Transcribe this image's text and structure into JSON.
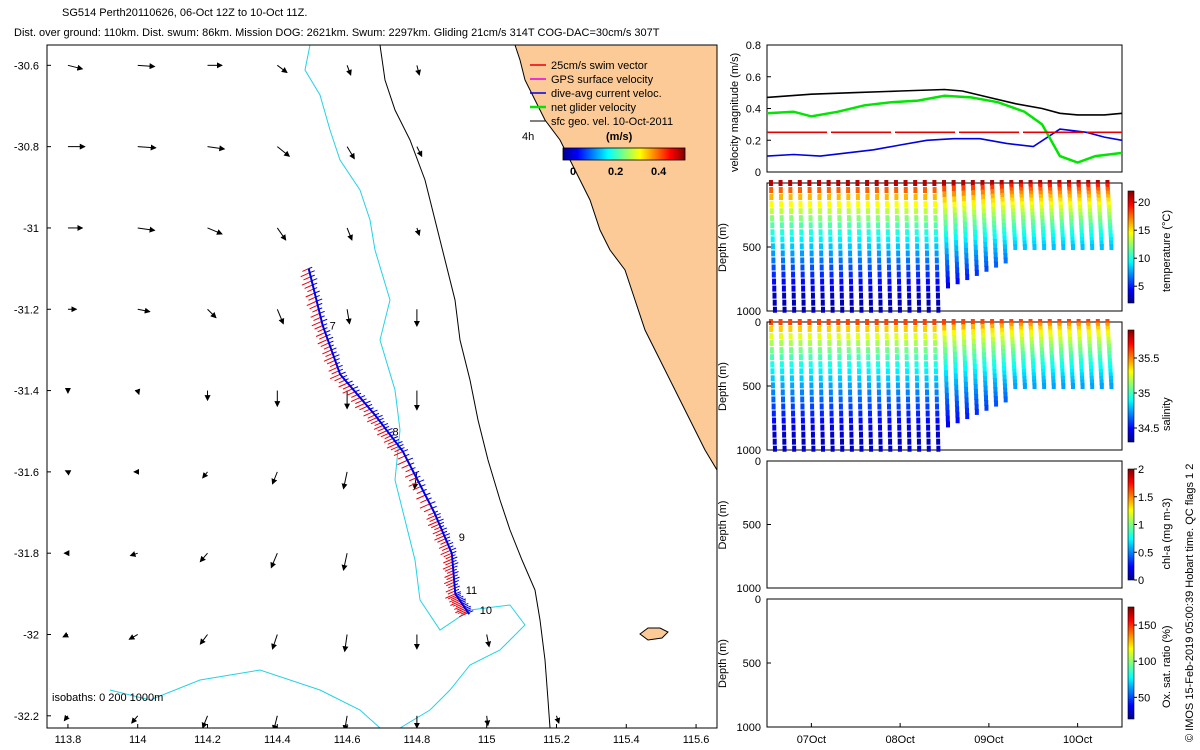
{
  "header": {
    "title_line": "SG514 Perth20110626, 06-Oct 12Z to 10-Oct 11Z.",
    "stats_line": "Dist. over ground: 110km. Dist. swum: 86km. Mission DOG: 2621km. Swum: 2297km. Gliding 21cm/s 314T COG-DAC=30cm/s 307T"
  },
  "side_note": "© IMOS 15-Feb-2019 05:00:39 Hobart time. QC flags 1 2",
  "colors": {
    "land": "#fcca96",
    "coast": "#000000",
    "isobath200": "#22d3e6",
    "swim": "#e8000b",
    "gps": "#e600e6",
    "dac": "#0000e6",
    "net": "#00e600",
    "geo": "#000000",
    "ref_line": "#e60000"
  },
  "chart_data": [
    {
      "type": "scatter",
      "panel": "map",
      "title": "",
      "xlabel": "",
      "ylabel": "",
      "xlim": [
        113.74,
        115.66
      ],
      "ylim": [
        -32.23,
        -30.55
      ],
      "x_ticks": [
        "113.8",
        "114",
        "114.2",
        "114.4",
        "114.6",
        "114.8",
        "115",
        "115.2",
        "115.4",
        "115.6"
      ],
      "y_ticks": [
        "-30.6",
        "-30.8",
        "-31",
        "-31.2",
        "-31.4",
        "-31.6",
        "-31.8",
        "-32",
        "-32.2"
      ],
      "legend": {
        "items": [
          "25cm/s swim vector",
          "GPS surface velocity",
          "dive-avg current veloc.",
          "net glider velocity",
          "sfc geo. vel. 10-Oct-2011"
        ],
        "position": "top-right",
        "time_label": "4h"
      },
      "colorbar": {
        "label": "(m/s)",
        "ticks": [
          "0",
          "0.2",
          "0.4"
        ],
        "range": [
          0,
          0.5
        ]
      },
      "isobath_label": "isobaths: 0   200  1000m",
      "track": [
        {
          "lon": 114.49,
          "lat": -31.1
        },
        {
          "lon": 114.53,
          "lat": -31.24
        },
        {
          "lon": 114.58,
          "lat": -31.36
        },
        {
          "lon": 114.68,
          "lat": -31.46
        },
        {
          "lon": 114.76,
          "lat": -31.55
        },
        {
          "lon": 114.85,
          "lat": -31.7
        },
        {
          "lon": 114.9,
          "lat": -31.8
        },
        {
          "lon": 114.91,
          "lat": -31.9
        },
        {
          "lon": 114.95,
          "lat": -31.95
        }
      ],
      "day_labels": [
        {
          "text": "7",
          "lon": 114.55,
          "lat": -31.25
        },
        {
          "text": "8",
          "lon": 114.73,
          "lat": -31.51
        },
        {
          "text": "9",
          "lon": 114.92,
          "lat": -31.77
        },
        {
          "text": "10",
          "lon": 114.98,
          "lat": -31.95
        },
        {
          "text": "11",
          "lon": 114.94,
          "lat": -31.9
        }
      ],
      "geo_vectors": [
        {
          "lon": 113.8,
          "lat": -30.6,
          "u": 0.12,
          "v": -0.03
        },
        {
          "lon": 114.0,
          "lat": -30.6,
          "u": 0.14,
          "v": -0.01
        },
        {
          "lon": 114.2,
          "lat": -30.6,
          "u": 0.12,
          "v": 0.0
        },
        {
          "lon": 114.4,
          "lat": -30.6,
          "u": 0.08,
          "v": -0.06
        },
        {
          "lon": 114.6,
          "lat": -30.6,
          "u": 0.03,
          "v": -0.08
        },
        {
          "lon": 114.8,
          "lat": -30.6,
          "u": 0.02,
          "v": -0.08
        },
        {
          "lon": 113.8,
          "lat": -30.8,
          "u": 0.14,
          "v": 0.0
        },
        {
          "lon": 114.0,
          "lat": -30.8,
          "u": 0.15,
          "v": -0.01
        },
        {
          "lon": 114.2,
          "lat": -30.8,
          "u": 0.14,
          "v": -0.02
        },
        {
          "lon": 114.4,
          "lat": -30.8,
          "u": 0.1,
          "v": -0.08
        },
        {
          "lon": 114.6,
          "lat": -30.8,
          "u": 0.06,
          "v": -0.1
        },
        {
          "lon": 114.8,
          "lat": -30.8,
          "u": 0.04,
          "v": -0.08
        },
        {
          "lon": 113.8,
          "lat": -31.0,
          "u": 0.12,
          "v": 0.0
        },
        {
          "lon": 114.0,
          "lat": -31.0,
          "u": 0.14,
          "v": -0.02
        },
        {
          "lon": 114.2,
          "lat": -31.0,
          "u": 0.12,
          "v": -0.05
        },
        {
          "lon": 114.4,
          "lat": -31.0,
          "u": 0.07,
          "v": -0.1
        },
        {
          "lon": 114.6,
          "lat": -31.0,
          "u": 0.04,
          "v": -0.1
        },
        {
          "lon": 114.8,
          "lat": -31.0,
          "u": 0.02,
          "v": -0.06
        },
        {
          "lon": 113.8,
          "lat": -31.2,
          "u": 0.07,
          "v": 0.0
        },
        {
          "lon": 114.0,
          "lat": -31.2,
          "u": 0.1,
          "v": -0.02
        },
        {
          "lon": 114.2,
          "lat": -31.2,
          "u": 0.07,
          "v": -0.07
        },
        {
          "lon": 114.4,
          "lat": -31.2,
          "u": 0.05,
          "v": -0.12
        },
        {
          "lon": 114.6,
          "lat": -31.2,
          "u": 0.02,
          "v": -0.12
        },
        {
          "lon": 114.8,
          "lat": -31.2,
          "u": 0.0,
          "v": -0.14
        },
        {
          "lon": 113.8,
          "lat": -31.4,
          "u": 0.0,
          "v": -0.02
        },
        {
          "lon": 114.0,
          "lat": -31.4,
          "u": 0.01,
          "v": -0.03
        },
        {
          "lon": 114.2,
          "lat": -31.4,
          "u": 0.0,
          "v": -0.08
        },
        {
          "lon": 114.4,
          "lat": -31.4,
          "u": 0.0,
          "v": -0.13
        },
        {
          "lon": 114.6,
          "lat": -31.4,
          "u": 0.0,
          "v": -0.15
        },
        {
          "lon": 114.8,
          "lat": -31.4,
          "u": 0.0,
          "v": -0.16
        },
        {
          "lon": 113.8,
          "lat": -31.6,
          "u": -0.02,
          "v": 0.01
        },
        {
          "lon": 114.0,
          "lat": -31.6,
          "u": -0.03,
          "v": 0.0
        },
        {
          "lon": 114.2,
          "lat": -31.6,
          "u": -0.04,
          "v": -0.05
        },
        {
          "lon": 114.4,
          "lat": -31.6,
          "u": -0.04,
          "v": -0.1
        },
        {
          "lon": 114.6,
          "lat": -31.6,
          "u": -0.03,
          "v": -0.14
        },
        {
          "lon": 114.8,
          "lat": -31.6,
          "u": -0.02,
          "v": -0.14
        },
        {
          "lon": 113.8,
          "lat": -31.8,
          "u": -0.03,
          "v": 0.0
        },
        {
          "lon": 114.0,
          "lat": -31.8,
          "u": -0.06,
          "v": -0.02
        },
        {
          "lon": 114.2,
          "lat": -31.8,
          "u": -0.06,
          "v": -0.07
        },
        {
          "lon": 114.4,
          "lat": -31.8,
          "u": -0.05,
          "v": -0.12
        },
        {
          "lon": 114.6,
          "lat": -31.8,
          "u": -0.03,
          "v": -0.14
        },
        {
          "lon": 113.8,
          "lat": -32.0,
          "u": -0.04,
          "v": -0.02
        },
        {
          "lon": 114.0,
          "lat": -32.0,
          "u": -0.07,
          "v": -0.04
        },
        {
          "lon": 114.2,
          "lat": -32.0,
          "u": -0.06,
          "v": -0.08
        },
        {
          "lon": 114.4,
          "lat": -32.0,
          "u": -0.04,
          "v": -0.12
        },
        {
          "lon": 114.6,
          "lat": -32.0,
          "u": -0.02,
          "v": -0.14
        },
        {
          "lon": 114.8,
          "lat": -32.0,
          "u": 0.0,
          "v": -0.12
        },
        {
          "lon": 115.0,
          "lat": -32.0,
          "u": 0.02,
          "v": -0.1
        },
        {
          "lon": 113.8,
          "lat": -32.2,
          "u": -0.03,
          "v": -0.04
        },
        {
          "lon": 114.0,
          "lat": -32.2,
          "u": -0.05,
          "v": -0.06
        },
        {
          "lon": 114.2,
          "lat": -32.2,
          "u": -0.04,
          "v": -0.1
        },
        {
          "lon": 114.4,
          "lat": -32.2,
          "u": -0.03,
          "v": -0.12
        },
        {
          "lon": 114.6,
          "lat": -32.2,
          "u": -0.02,
          "v": -0.12
        },
        {
          "lon": 114.8,
          "lat": -32.2,
          "u": 0.0,
          "v": -0.1
        },
        {
          "lon": 115.0,
          "lat": -32.2,
          "u": 0.01,
          "v": -0.08
        },
        {
          "lon": 115.2,
          "lat": -32.2,
          "u": 0.02,
          "v": -0.06
        }
      ]
    },
    {
      "type": "line",
      "panel": "velocity",
      "ylabel": "velocity magnitude (m/s)",
      "ylim": [
        0,
        0.8
      ],
      "y_ticks": [
        "0",
        "0.2",
        "0.4",
        "0.6",
        "0.8"
      ],
      "xlim_days": [
        6.5,
        10.5
      ],
      "series": [
        {
          "color": "black",
          "x": [
            6.5,
            7.0,
            7.5,
            8.0,
            8.5,
            8.7,
            9.0,
            9.3,
            9.6,
            9.8,
            10.0,
            10.3,
            10.5
          ],
          "y": [
            0.47,
            0.49,
            0.5,
            0.51,
            0.52,
            0.51,
            0.47,
            0.43,
            0.4,
            0.37,
            0.36,
            0.36,
            0.37
          ]
        },
        {
          "color": "blue",
          "x": [
            6.5,
            6.8,
            7.1,
            7.4,
            7.7,
            8.0,
            8.3,
            8.6,
            8.9,
            9.2,
            9.5,
            9.8,
            10.1,
            10.3,
            10.5
          ],
          "y": [
            0.1,
            0.11,
            0.1,
            0.12,
            0.14,
            0.17,
            0.2,
            0.21,
            0.21,
            0.18,
            0.16,
            0.27,
            0.25,
            0.22,
            0.2
          ]
        },
        {
          "color": "green",
          "x": [
            6.5,
            6.8,
            7.0,
            7.3,
            7.6,
            7.9,
            8.2,
            8.5,
            8.8,
            9.1,
            9.4,
            9.6,
            9.8,
            10.0,
            10.2,
            10.5
          ],
          "y": [
            0.37,
            0.38,
            0.35,
            0.38,
            0.42,
            0.44,
            0.45,
            0.48,
            0.47,
            0.44,
            0.38,
            0.3,
            0.1,
            0.06,
            0.1,
            0.12
          ]
        },
        {
          "color": "red",
          "x": [
            6.5,
            10.5
          ],
          "y": [
            0.25,
            0.25
          ]
        }
      ]
    },
    {
      "type": "heatmap",
      "panel": "temperature",
      "ylabel": "Depth (m)",
      "ylim": [
        1000,
        0
      ],
      "y_ticks": [
        "500",
        "1000"
      ],
      "colorbar_label": "temperature (°C)",
      "colorbar_ticks": [
        "5",
        "10",
        "15",
        "20"
      ],
      "crange": [
        2,
        22
      ],
      "surface": 21,
      "deep": 3
    },
    {
      "type": "heatmap",
      "panel": "salinity",
      "ylabel": "Depth (m)",
      "ylim": [
        1000,
        0
      ],
      "y_ticks": [
        "0",
        "500",
        "1000"
      ],
      "colorbar_label": "salinity",
      "colorbar_ticks": [
        "34.5",
        "35",
        "35.5"
      ],
      "crange": [
        34.3,
        35.9
      ],
      "surface": 35.6,
      "deep": 34.4
    },
    {
      "type": "heatmap",
      "panel": "chla",
      "ylabel": "Depth (m)",
      "ylim": [
        1000,
        0
      ],
      "y_ticks": [
        "0",
        "500",
        "1000"
      ],
      "colorbar_label": "chl-a (mg m-3)",
      "colorbar_ticks": [
        "0",
        "0.5",
        "1",
        "1.5",
        "2"
      ],
      "crange": [
        0,
        2
      ]
    },
    {
      "type": "heatmap",
      "panel": "oxygen",
      "ylabel": "Depth (m)",
      "ylim": [
        1000,
        0
      ],
      "y_ticks": [
        "0",
        "500",
        "1000"
      ],
      "colorbar_label": "Ox. sat. ratio (%)",
      "colorbar_ticks": [
        "50",
        "100",
        "150"
      ],
      "crange": [
        20,
        175
      ],
      "x_ticks": [
        "07Oct",
        "08Oct",
        "09Oct",
        "10Oct"
      ]
    }
  ]
}
